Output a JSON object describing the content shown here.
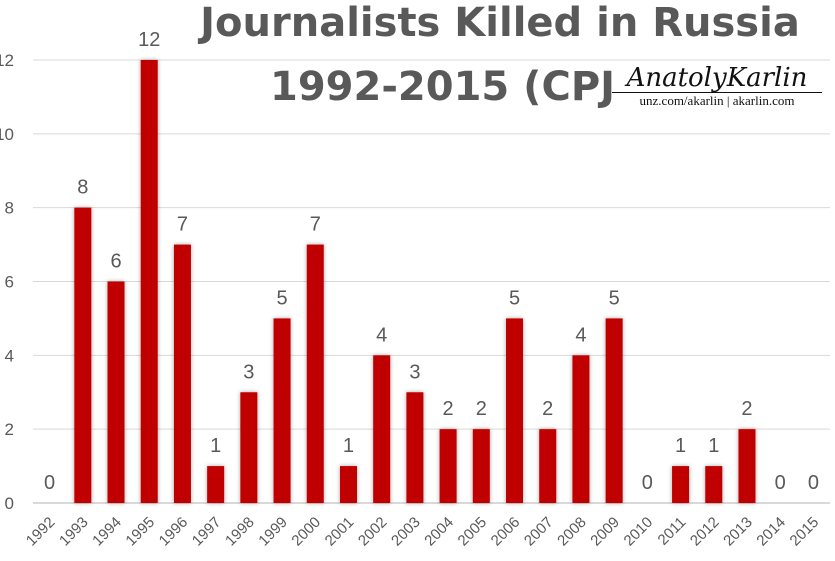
{
  "chart_data": {
    "type": "bar",
    "title_line1": "Journalists Killed in Russia",
    "title_line2": "1992-2015 (CPJ)",
    "categories": [
      "1992",
      "1993",
      "1994",
      "1995",
      "1996",
      "1997",
      "1998",
      "1999",
      "2000",
      "2001",
      "2002",
      "2003",
      "2004",
      "2005",
      "2006",
      "2007",
      "2008",
      "2009",
      "2010",
      "2011",
      "2012",
      "2013",
      "2014",
      "2015"
    ],
    "values": [
      0,
      8,
      6,
      12,
      7,
      1,
      3,
      5,
      7,
      1,
      4,
      3,
      2,
      2,
      5,
      2,
      4,
      5,
      0,
      1,
      1,
      2,
      0,
      0
    ],
    "ylim": [
      0,
      12
    ],
    "yticks": [
      0,
      2,
      4,
      6,
      8,
      10,
      12
    ],
    "grid": true,
    "bar_color": "#c00000",
    "data_labels": true
  },
  "watermark": {
    "signature": "AnatolyKarlin",
    "urls": "unz.com/akarlin | akarlin.com"
  }
}
